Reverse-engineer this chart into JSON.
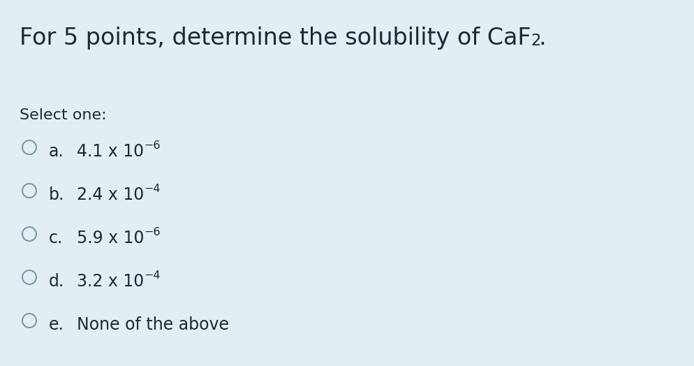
{
  "background_color": "#e2eef2",
  "title_part1": "For 5 points, determine the solubility of CaF",
  "title_sub": "2",
  "title_suffix": ".",
  "select_one": "Select one:",
  "options": [
    {
      "label": "a.",
      "main": "4.1 x 10",
      "exp": "−6"
    },
    {
      "label": "b.",
      "main": "2.4 x 10",
      "exp": "−4"
    },
    {
      "label": "c.",
      "main": "5.9 x 10",
      "exp": "−6"
    },
    {
      "label": "d.",
      "main": "3.2 x 10",
      "exp": "−4"
    },
    {
      "label": "e.",
      "main": "None of the above",
      "exp": ""
    }
  ],
  "title_fontsize": 24,
  "select_fontsize": 16,
  "option_fontsize": 17,
  "text_color": "#1a2a35",
  "circle_color": "#7a9aaa",
  "fig_width": 9.94,
  "fig_height": 5.24,
  "dpi": 100
}
